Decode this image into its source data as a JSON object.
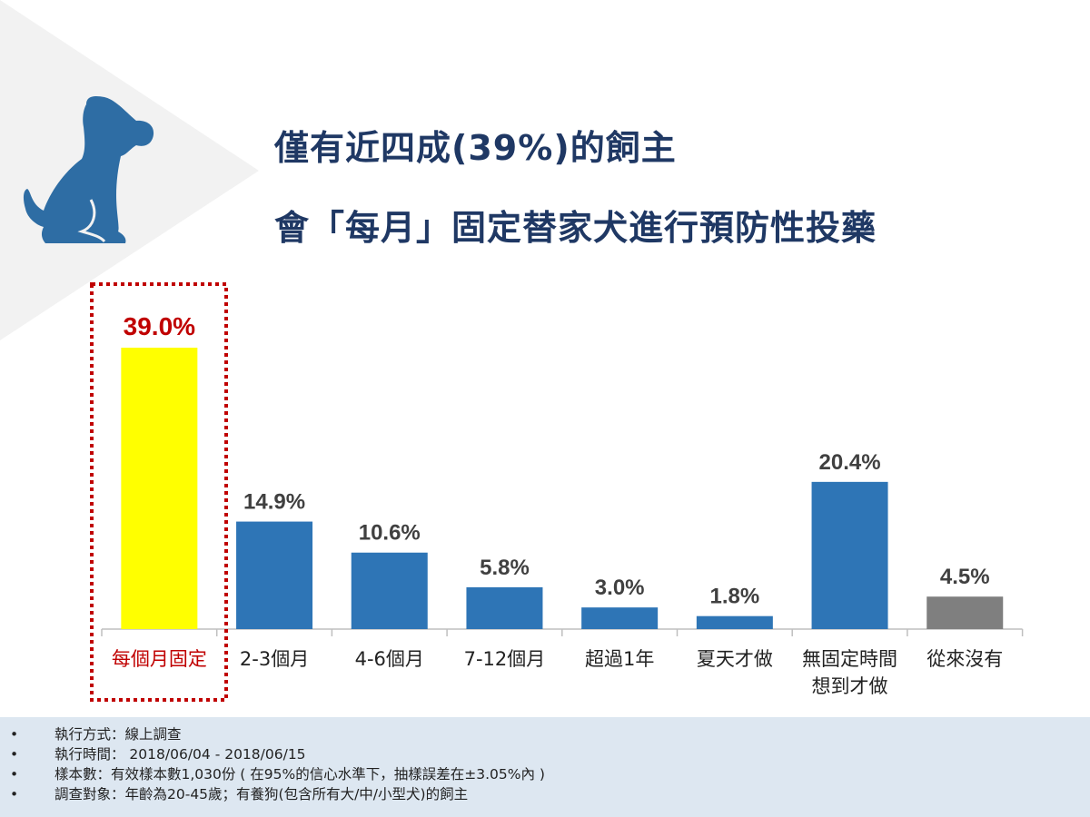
{
  "title": {
    "line1": "僅有近四成(39%)的飼主",
    "line2": "會「每月」固定替家犬進行預防性投藥"
  },
  "chart_data": {
    "type": "bar",
    "title": "僅有近四成(39%)的飼主 會「每月」固定替家犬進行預防性投藥",
    "categories": [
      [
        "每個月固定"
      ],
      [
        "2-3個月"
      ],
      [
        "4-6個月"
      ],
      [
        "7-12個月"
      ],
      [
        "超過1年"
      ],
      [
        "夏天才做"
      ],
      [
        "無固定時間",
        "想到才做"
      ],
      [
        "從來沒有"
      ]
    ],
    "values": [
      39.0,
      14.9,
      10.6,
      5.8,
      3.0,
      1.8,
      20.4,
      4.5
    ],
    "labels": [
      "39.0%",
      "14.9%",
      "10.6%",
      "5.8%",
      "3.0%",
      "1.8%",
      "20.4%",
      "4.5%"
    ],
    "colors": [
      "#ffff00",
      "#2e75b6",
      "#2e75b6",
      "#2e75b6",
      "#2e75b6",
      "#2e75b6",
      "#2e75b6",
      "#7f7f7f"
    ],
    "highlight_index": 0,
    "highlight_color": "#c00000",
    "ylim": [
      0,
      40
    ],
    "grid": false,
    "xlabel": "",
    "ylabel": ""
  },
  "footer": {
    "items": [
      "執行方式：線上調查",
      "執行時間： 2018/06/04 - 2018/06/15",
      "樣本數：有效樣本數1,030份 ( 在95%的信心水準下，抽樣誤差在±3.05%內 )",
      "調查對象：年齡為20-45歲；有養狗(包含所有大/中/小型犬)的飼主"
    ],
    "bullet": "•"
  }
}
